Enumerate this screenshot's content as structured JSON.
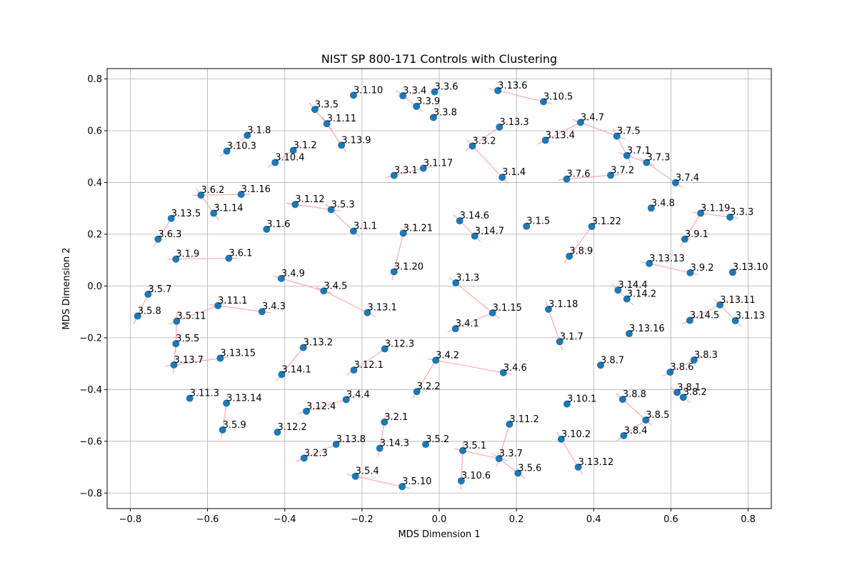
{
  "chart_data": {
    "type": "scatter",
    "title": "NIST SP 800-171 Controls with Clustering",
    "xlabel": "MDS Dimension 1",
    "ylabel": "MDS Dimension 2",
    "xlim": [
      -0.86,
      0.86
    ],
    "ylim": [
      -0.86,
      0.84
    ],
    "xticks": [
      -0.8,
      -0.6,
      -0.4,
      -0.2,
      0.0,
      0.2,
      0.4,
      0.6,
      0.8
    ],
    "yticks": [
      -0.8,
      -0.6,
      -0.4,
      -0.2,
      0.0,
      0.2,
      0.4,
      0.6,
      0.8
    ],
    "xtick_labels": [
      "−0.8",
      "−0.6",
      "−0.4",
      "−0.2",
      "0.0",
      "0.2",
      "0.4",
      "0.6",
      "0.8"
    ],
    "ytick_labels": [
      "−0.8",
      "−0.6",
      "−0.4",
      "−0.2",
      "0.0",
      "0.2",
      "0.4",
      "0.6",
      "0.8"
    ],
    "grid": true,
    "legend": "none",
    "colors": {
      "point": "#1f77b4",
      "link": "#ff9b9b",
      "grid": "#b0b0b0"
    },
    "points": [
      {
        "label": "3.13.6",
        "x": 0.152,
        "y": 0.755
      },
      {
        "label": "3.10.5",
        "x": 0.27,
        "y": 0.712
      },
      {
        "label": "3.3.4",
        "x": -0.094,
        "y": 0.735
      },
      {
        "label": "3.3.6",
        "x": -0.012,
        "y": 0.75
      },
      {
        "label": "3.1.10",
        "x": -0.222,
        "y": 0.737
      },
      {
        "label": "3.3.9",
        "x": -0.059,
        "y": 0.694
      },
      {
        "label": "3.3.5",
        "x": -0.322,
        "y": 0.682
      },
      {
        "label": "3.3.8",
        "x": -0.015,
        "y": 0.651
      },
      {
        "label": "3.1.11",
        "x": -0.291,
        "y": 0.627
      },
      {
        "label": "3.4.7",
        "x": 0.366,
        "y": 0.632
      },
      {
        "label": "3.13.3",
        "x": 0.156,
        "y": 0.614
      },
      {
        "label": "3.1.8",
        "x": -0.497,
        "y": 0.582
      },
      {
        "label": "3.7.5",
        "x": 0.46,
        "y": 0.579
      },
      {
        "label": "3.13.4",
        "x": 0.275,
        "y": 0.563
      },
      {
        "label": "3.13.9",
        "x": -0.253,
        "y": 0.544
      },
      {
        "label": "3.3.2",
        "x": 0.086,
        "y": 0.541
      },
      {
        "label": "3.1.2",
        "x": -0.378,
        "y": 0.524
      },
      {
        "label": "3.10.3",
        "x": -0.55,
        "y": 0.521
      },
      {
        "label": "3.7.1",
        "x": 0.486,
        "y": 0.504
      },
      {
        "label": "3.10.4",
        "x": -0.425,
        "y": 0.477
      },
      {
        "label": "3.7.3",
        "x": 0.537,
        "y": 0.477
      },
      {
        "label": "3.1.17",
        "x": -0.041,
        "y": 0.455
      },
      {
        "label": "3.3.1",
        "x": -0.117,
        "y": 0.427
      },
      {
        "label": "3.7.2",
        "x": 0.444,
        "y": 0.428
      },
      {
        "label": "3.1.4",
        "x": 0.163,
        "y": 0.42
      },
      {
        "label": "3.7.6",
        "x": 0.33,
        "y": 0.413
      },
      {
        "label": "3.7.4",
        "x": 0.612,
        "y": 0.399
      },
      {
        "label": "3.6.2",
        "x": -0.617,
        "y": 0.351
      },
      {
        "label": "3.1.16",
        "x": -0.513,
        "y": 0.354
      },
      {
        "label": "3.1.12",
        "x": -0.373,
        "y": 0.315
      },
      {
        "label": "3.4.8",
        "x": 0.549,
        "y": 0.301
      },
      {
        "label": "3.5.3",
        "x": -0.28,
        "y": 0.295
      },
      {
        "label": "3.1.14",
        "x": -0.584,
        "y": 0.281
      },
      {
        "label": "3.1.19",
        "x": 0.677,
        "y": 0.281
      },
      {
        "label": "3.3.3",
        "x": 0.753,
        "y": 0.266
      },
      {
        "label": "3.13.5",
        "x": -0.694,
        "y": 0.261
      },
      {
        "label": "3.14.6",
        "x": 0.053,
        "y": 0.252
      },
      {
        "label": "3.1.5",
        "x": 0.226,
        "y": 0.231
      },
      {
        "label": "3.1.22",
        "x": 0.395,
        "y": 0.23
      },
      {
        "label": "3.1.6",
        "x": -0.447,
        "y": 0.219
      },
      {
        "label": "3.1.1",
        "x": -0.222,
        "y": 0.212
      },
      {
        "label": "3.1.21",
        "x": -0.093,
        "y": 0.204
      },
      {
        "label": "3.14.7",
        "x": 0.092,
        "y": 0.193
      },
      {
        "label": "3.6.3",
        "x": -0.728,
        "y": 0.181
      },
      {
        "label": "3.9.1",
        "x": 0.636,
        "y": 0.181
      },
      {
        "label": "3.8.9",
        "x": 0.337,
        "y": 0.115
      },
      {
        "label": "3.1.9",
        "x": -0.682,
        "y": 0.104
      },
      {
        "label": "3.6.1",
        "x": -0.545,
        "y": 0.107
      },
      {
        "label": "3.13.13",
        "x": 0.544,
        "y": 0.087
      },
      {
        "label": "3.1.20",
        "x": -0.117,
        "y": 0.055
      },
      {
        "label": "3.9.2",
        "x": 0.65,
        "y": 0.051
      },
      {
        "label": "3.13.10",
        "x": 0.76,
        "y": 0.053
      },
      {
        "label": "3.4.9",
        "x": -0.409,
        "y": 0.029
      },
      {
        "label": "3.1.3",
        "x": 0.043,
        "y": 0.012
      },
      {
        "label": "3.5.7",
        "x": -0.754,
        "y": -0.032
      },
      {
        "label": "3.4.5",
        "x": -0.299,
        "y": -0.019
      },
      {
        "label": "3.14.4",
        "x": 0.463,
        "y": -0.016
      },
      {
        "label": "3.14.2",
        "x": 0.486,
        "y": -0.05
      },
      {
        "label": "3.11.1",
        "x": -0.573,
        "y": -0.076
      },
      {
        "label": "3.13.11",
        "x": 0.727,
        "y": -0.073
      },
      {
        "label": "3.1.18",
        "x": 0.283,
        "y": -0.09
      },
      {
        "label": "3.4.3",
        "x": -0.459,
        "y": -0.099
      },
      {
        "label": "3.13.1",
        "x": -0.186,
        "y": -0.103
      },
      {
        "label": "3.1.15",
        "x": 0.138,
        "y": -0.104
      },
      {
        "label": "3.5.8",
        "x": -0.781,
        "y": -0.116
      },
      {
        "label": "3.5.11",
        "x": -0.68,
        "y": -0.136
      },
      {
        "label": "3.1.13",
        "x": 0.767,
        "y": -0.134
      },
      {
        "label": "3.14.5",
        "x": 0.649,
        "y": -0.133
      },
      {
        "label": "3.4.1",
        "x": 0.042,
        "y": -0.165
      },
      {
        "label": "3.13.16",
        "x": 0.492,
        "y": -0.184
      },
      {
        "label": "3.1.7",
        "x": 0.312,
        "y": -0.215
      },
      {
        "label": "3.5.5",
        "x": -0.682,
        "y": -0.223
      },
      {
        "label": "3.13.2",
        "x": -0.352,
        "y": -0.238
      },
      {
        "label": "3.12.3",
        "x": -0.141,
        "y": -0.243
      },
      {
        "label": "3.13.15",
        "x": -0.567,
        "y": -0.279
      },
      {
        "label": "3.8.3",
        "x": 0.66,
        "y": -0.286
      },
      {
        "label": "3.4.2",
        "x": -0.009,
        "y": -0.287
      },
      {
        "label": "3.13.7",
        "x": -0.687,
        "y": -0.305
      },
      {
        "label": "3.8.7",
        "x": 0.418,
        "y": -0.306
      },
      {
        "label": "3.12.1",
        "x": -0.221,
        "y": -0.325
      },
      {
        "label": "3.8.6",
        "x": 0.598,
        "y": -0.333
      },
      {
        "label": "3.4.6",
        "x": 0.166,
        "y": -0.335
      },
      {
        "label": "3.14.1",
        "x": -0.408,
        "y": -0.342
      },
      {
        "label": "3.2.2",
        "x": -0.058,
        "y": -0.408
      },
      {
        "label": "3.8.1",
        "x": 0.616,
        "y": -0.411
      },
      {
        "label": "3.8.2",
        "x": 0.632,
        "y": -0.43
      },
      {
        "label": "3.11.3",
        "x": -0.646,
        "y": -0.434
      },
      {
        "label": "3.4.4",
        "x": -0.241,
        "y": -0.439
      },
      {
        "label": "3.8.8",
        "x": 0.475,
        "y": -0.438
      },
      {
        "label": "3.13.14",
        "x": -0.551,
        "y": -0.453
      },
      {
        "label": "3.10.1",
        "x": 0.331,
        "y": -0.456
      },
      {
        "label": "3.12.4",
        "x": -0.344,
        "y": -0.484
      },
      {
        "label": "3.8.5",
        "x": 0.535,
        "y": -0.518
      },
      {
        "label": "3.2.1",
        "x": -0.142,
        "y": -0.526
      },
      {
        "label": "3.11.2",
        "x": 0.182,
        "y": -0.534
      },
      {
        "label": "3.5.9",
        "x": -0.561,
        "y": -0.556
      },
      {
        "label": "3.12.2",
        "x": -0.419,
        "y": -0.565
      },
      {
        "label": "3.8.4",
        "x": 0.478,
        "y": -0.578
      },
      {
        "label": "3.10.2",
        "x": 0.316,
        "y": -0.592
      },
      {
        "label": "3.13.8",
        "x": -0.267,
        "y": -0.612
      },
      {
        "label": "3.5.2",
        "x": -0.035,
        "y": -0.612
      },
      {
        "label": "3.14.3",
        "x": -0.154,
        "y": -0.627
      },
      {
        "label": "3.5.1",
        "x": 0.061,
        "y": -0.636
      },
      {
        "label": "3.2.3",
        "x": -0.35,
        "y": -0.665
      },
      {
        "label": "3.3.7",
        "x": 0.155,
        "y": -0.667
      },
      {
        "label": "3.13.12",
        "x": 0.36,
        "y": -0.7
      },
      {
        "label": "3.5.6",
        "x": 0.204,
        "y": -0.723
      },
      {
        "label": "3.5.4",
        "x": -0.217,
        "y": -0.735
      },
      {
        "label": "3.10.6",
        "x": 0.057,
        "y": -0.753
      },
      {
        "label": "3.5.10",
        "x": -0.096,
        "y": -0.775
      }
    ],
    "links": [
      [
        "3.13.6",
        "3.10.5"
      ],
      [
        "3.3.4",
        "3.3.9"
      ],
      [
        "3.3.5",
        "3.1.11"
      ],
      [
        "3.1.11",
        "3.13.9"
      ],
      [
        "3.1.8",
        "3.10.3"
      ],
      [
        "3.1.2",
        "3.10.4"
      ],
      [
        "3.4.7",
        "3.7.5"
      ],
      [
        "3.4.7",
        "3.13.4"
      ],
      [
        "3.7.5",
        "3.7.1"
      ],
      [
        "3.7.1",
        "3.7.3"
      ],
      [
        "3.7.3",
        "3.7.4"
      ],
      [
        "3.13.3",
        "3.3.2"
      ],
      [
        "3.3.2",
        "3.1.4"
      ],
      [
        "3.3.1",
        "3.1.17"
      ],
      [
        "3.7.6",
        "3.7.2"
      ],
      [
        "3.6.2",
        "3.1.16"
      ],
      [
        "3.6.2",
        "3.1.14"
      ],
      [
        "3.13.5",
        "3.6.3"
      ],
      [
        "3.1.12",
        "3.5.3"
      ],
      [
        "3.5.3",
        "3.1.1"
      ],
      [
        "3.1.19",
        "3.3.3"
      ],
      [
        "3.1.19",
        "3.9.1"
      ],
      [
        "3.14.6",
        "3.14.7"
      ],
      [
        "3.1.22",
        "3.8.9"
      ],
      [
        "3.1.21",
        "3.1.20"
      ],
      [
        "3.1.9",
        "3.6.1"
      ],
      [
        "3.13.13",
        "3.9.2"
      ],
      [
        "3.4.9",
        "3.4.5"
      ],
      [
        "3.4.5",
        "3.13.1"
      ],
      [
        "3.1.3",
        "3.1.15"
      ],
      [
        "3.5.7",
        "3.5.8"
      ],
      [
        "3.14.4",
        "3.14.2"
      ],
      [
        "3.11.1",
        "3.4.3"
      ],
      [
        "3.11.1",
        "3.5.11"
      ],
      [
        "3.13.11",
        "3.1.13"
      ],
      [
        "3.13.11",
        "3.14.5"
      ],
      [
        "3.1.18",
        "3.1.7"
      ],
      [
        "3.1.15",
        "3.4.1"
      ],
      [
        "3.5.11",
        "3.5.5"
      ],
      [
        "3.5.5",
        "3.13.7"
      ],
      [
        "3.13.15",
        "3.13.7"
      ],
      [
        "3.13.2",
        "3.14.1"
      ],
      [
        "3.12.3",
        "3.12.1"
      ],
      [
        "3.4.2",
        "3.4.6"
      ],
      [
        "3.4.2",
        "3.2.2"
      ],
      [
        "3.8.3",
        "3.8.6"
      ],
      [
        "3.8.1",
        "3.8.2"
      ],
      [
        "3.4.4",
        "3.12.4"
      ],
      [
        "3.8.8",
        "3.8.5"
      ],
      [
        "3.8.5",
        "3.8.4"
      ],
      [
        "3.2.1",
        "3.14.3"
      ],
      [
        "3.11.2",
        "3.3.7"
      ],
      [
        "3.13.14",
        "3.5.9"
      ],
      [
        "3.10.2",
        "3.13.12"
      ],
      [
        "3.13.8",
        "3.2.3"
      ],
      [
        "3.5.1",
        "3.3.7"
      ],
      [
        "3.5.1",
        "3.10.6"
      ],
      [
        "3.3.7",
        "3.5.6"
      ],
      [
        "3.5.4",
        "3.5.10"
      ]
    ]
  }
}
